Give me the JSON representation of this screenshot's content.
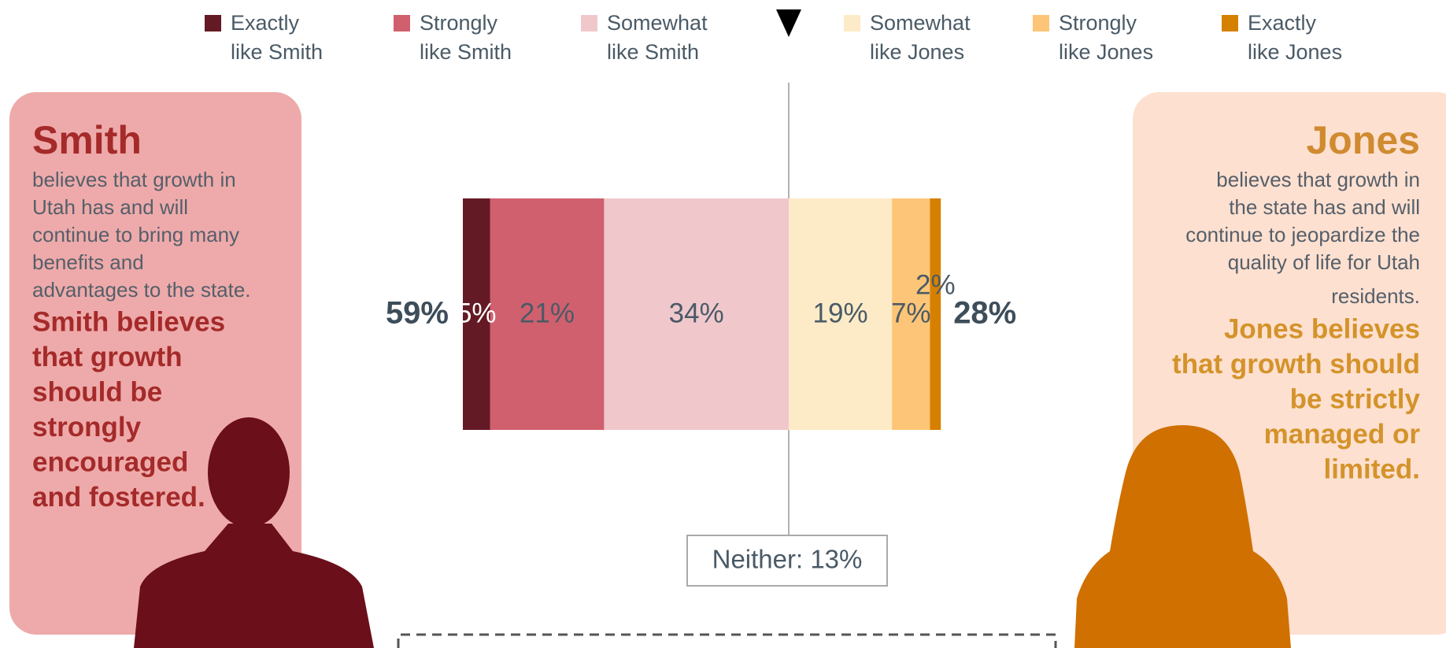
{
  "chart_data": {
    "type": "diverging_bar",
    "series": [
      {
        "name": "Exactly like Smith",
        "color": "#641a25",
        "label_color": "#ffffff",
        "side": "left",
        "values": [
          5
        ],
        "value_labels": [
          "5%"
        ]
      },
      {
        "name": "Strongly like Smith",
        "color": "#d0606e",
        "label_color": "#4a5a66",
        "side": "left",
        "values": [
          21
        ],
        "value_labels": [
          "21%"
        ]
      },
      {
        "name": "Somewhat like Smith",
        "color": "#f0c8cc",
        "label_color": "#4a5a66",
        "side": "left",
        "values": [
          34
        ],
        "value_labels": [
          "34%"
        ]
      },
      {
        "name": "Somewhat like Jones",
        "color": "#fdebc8",
        "label_color": "#4a5a66",
        "side": "right",
        "values": [
          19
        ],
        "value_labels": [
          "19%"
        ]
      },
      {
        "name": "Strongly like Jones",
        "color": "#fdc577",
        "label_color": "#4a5a66",
        "side": "right",
        "values": [
          7
        ],
        "value_labels": [
          "7%"
        ]
      },
      {
        "name": "Exactly like Jones",
        "color": "#d68000",
        "label_color": "#4a5a66",
        "side": "right",
        "values": [
          2
        ],
        "value_labels": [
          "2%"
        ]
      }
    ],
    "totals": [
      {
        "value": 59,
        "label": "59%"
      },
      {
        "value": 28,
        "label": "28%"
      }
    ],
    "neither": {
      "value": 13,
      "label": "Neither: 13%"
    }
  },
  "panels": [
    {
      "title": "Smith",
      "body_lines": [
        "believes that growth in",
        "Utah has and will",
        "continue to bring many",
        "benefits and",
        "advantages to the state."
      ],
      "statement_lines": [
        "Smith believes",
        "that growth",
        "should be",
        "strongly",
        "encouraged",
        "and fostered."
      ]
    },
    {
      "title": "Jones",
      "body_lines": [
        "believes that growth in",
        "the state has and will",
        "continue to jeopardize the",
        "quality of life for Utah",
        "residents."
      ],
      "statement_lines": [
        "Jones believes",
        "that growth should",
        "be strictly",
        "managed or",
        "limited."
      ]
    }
  ]
}
